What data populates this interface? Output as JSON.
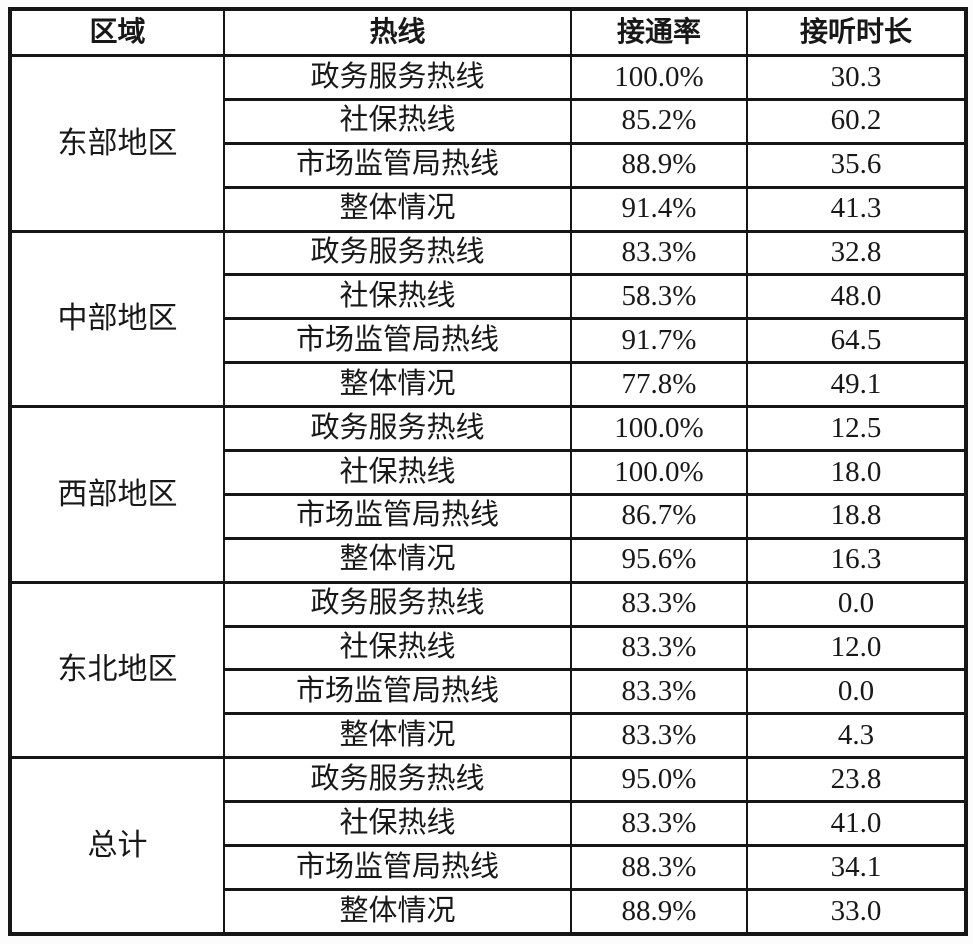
{
  "table": {
    "headers": [
      "区域",
      "热线",
      "接通率",
      "接听时长"
    ],
    "groups": [
      {
        "region": "东部地区",
        "rows": [
          {
            "hotline": "政务服务热线",
            "rate": "100.0%",
            "duration": "30.3"
          },
          {
            "hotline": "社保热线",
            "rate": "85.2%",
            "duration": "60.2"
          },
          {
            "hotline": "市场监管局热线",
            "rate": "88.9%",
            "duration": "35.6"
          },
          {
            "hotline": "整体情况",
            "rate": "91.4%",
            "duration": "41.3"
          }
        ]
      },
      {
        "region": "中部地区",
        "rows": [
          {
            "hotline": "政务服务热线",
            "rate": "83.3%",
            "duration": "32.8"
          },
          {
            "hotline": "社保热线",
            "rate": "58.3%",
            "duration": "48.0"
          },
          {
            "hotline": "市场监管局热线",
            "rate": "91.7%",
            "duration": "64.5"
          },
          {
            "hotline": "整体情况",
            "rate": "77.8%",
            "duration": "49.1"
          }
        ]
      },
      {
        "region": "西部地区",
        "rows": [
          {
            "hotline": "政务服务热线",
            "rate": "100.0%",
            "duration": "12.5"
          },
          {
            "hotline": "社保热线",
            "rate": "100.0%",
            "duration": "18.0"
          },
          {
            "hotline": "市场监管局热线",
            "rate": "86.7%",
            "duration": "18.8"
          },
          {
            "hotline": "整体情况",
            "rate": "95.6%",
            "duration": "16.3"
          }
        ]
      },
      {
        "region": "东北地区",
        "rows": [
          {
            "hotline": "政务服务热线",
            "rate": "83.3%",
            "duration": "0.0"
          },
          {
            "hotline": "社保热线",
            "rate": "83.3%",
            "duration": "12.0"
          },
          {
            "hotline": "市场监管局热线",
            "rate": "83.3%",
            "duration": "0.0"
          },
          {
            "hotline": "整体情况",
            "rate": "83.3%",
            "duration": "4.3"
          }
        ]
      },
      {
        "region": "总计",
        "rows": [
          {
            "hotline": "政务服务热线",
            "rate": "95.0%",
            "duration": "23.8"
          },
          {
            "hotline": "社保热线",
            "rate": "83.3%",
            "duration": "41.0"
          },
          {
            "hotline": "市场监管局热线",
            "rate": "88.3%",
            "duration": "34.1"
          },
          {
            "hotline": "整体情况",
            "rate": "88.9%",
            "duration": "33.0"
          }
        ]
      }
    ]
  },
  "colors": {
    "border": "#161616",
    "text": "#181818",
    "background": "#ffffff"
  },
  "chart_data": {
    "type": "table",
    "columns": [
      "区域",
      "热线",
      "接通率",
      "接听时长"
    ],
    "rows": [
      [
        "东部地区",
        "政务服务热线",
        "100.0%",
        30.3
      ],
      [
        "东部地区",
        "社保热线",
        "85.2%",
        60.2
      ],
      [
        "东部地区",
        "市场监管局热线",
        "88.9%",
        35.6
      ],
      [
        "东部地区",
        "整体情况",
        "91.4%",
        41.3
      ],
      [
        "中部地区",
        "政务服务热线",
        "83.3%",
        32.8
      ],
      [
        "中部地区",
        "社保热线",
        "58.3%",
        48.0
      ],
      [
        "中部地区",
        "市场监管局热线",
        "91.7%",
        64.5
      ],
      [
        "中部地区",
        "整体情况",
        "77.8%",
        49.1
      ],
      [
        "西部地区",
        "政务服务热线",
        "100.0%",
        12.5
      ],
      [
        "西部地区",
        "社保热线",
        "100.0%",
        18.0
      ],
      [
        "西部地区",
        "市场监管局热线",
        "86.7%",
        18.8
      ],
      [
        "西部地区",
        "整体情况",
        "95.6%",
        16.3
      ],
      [
        "东北地区",
        "政务服务热线",
        "83.3%",
        0.0
      ],
      [
        "东北地区",
        "社保热线",
        "83.3%",
        12.0
      ],
      [
        "东北地区",
        "市场监管局热线",
        "83.3%",
        0.0
      ],
      [
        "东北地区",
        "整体情况",
        "83.3%",
        4.3
      ],
      [
        "总计",
        "政务服务热线",
        "95.0%",
        23.8
      ],
      [
        "总计",
        "社保热线",
        "83.3%",
        41.0
      ],
      [
        "总计",
        "市场监管局热线",
        "88.3%",
        34.1
      ],
      [
        "总计",
        "整体情况",
        "88.9%",
        33.0
      ]
    ]
  }
}
